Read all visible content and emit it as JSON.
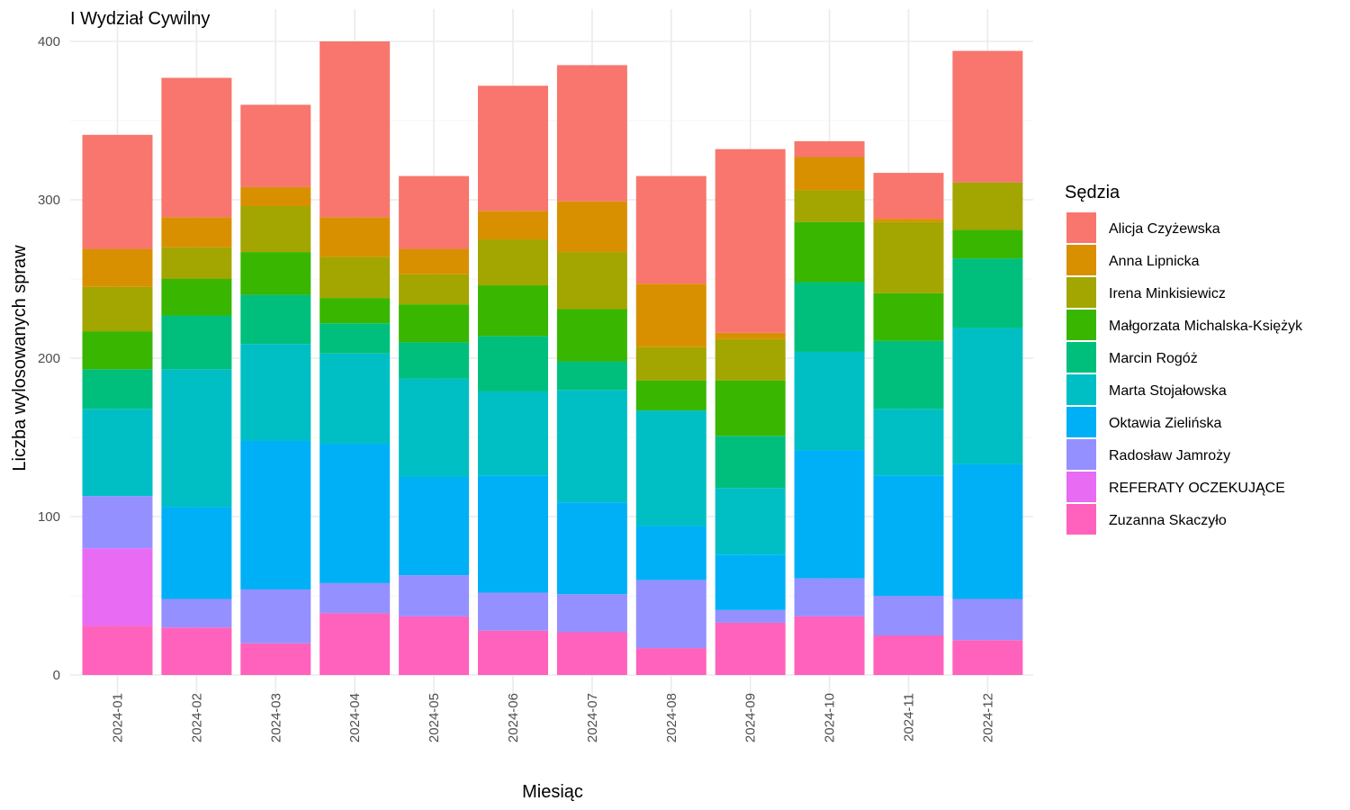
{
  "chart_data": {
    "type": "bar",
    "stacked": true,
    "title": "I Wydział Cywilny",
    "xlabel": "Miesiąc",
    "ylabel": "Liczba wylosowanych spraw",
    "ylim": [
      0,
      400
    ],
    "yticks": [
      0,
      100,
      200,
      300,
      400
    ],
    "grid": true,
    "legend_title": "Sędzia",
    "legend_position": "right",
    "categories": [
      "2024-01",
      "2024-02",
      "2024-03",
      "2024-04",
      "2024-05",
      "2024-06",
      "2024-07",
      "2024-08",
      "2024-09",
      "2024-10",
      "2024-11",
      "2024-12"
    ],
    "series": [
      {
        "name": "Alicja Czyżewska",
        "color": "#F8766D",
        "values": [
          72,
          88,
          52,
          111,
          46,
          79,
          86,
          68,
          116,
          10,
          29,
          83
        ]
      },
      {
        "name": "Anna Lipnicka",
        "color": "#D89000",
        "values": [
          24,
          19,
          12,
          25,
          16,
          18,
          32,
          40,
          4,
          21,
          2,
          0
        ]
      },
      {
        "name": "Irena Minkisiewicz",
        "color": "#A3A500",
        "values": [
          28,
          20,
          29,
          26,
          19,
          29,
          36,
          21,
          26,
          20,
          45,
          30
        ]
      },
      {
        "name": "Małgorzata Michalska-Księżyk",
        "color": "#39B600",
        "values": [
          24,
          23,
          27,
          16,
          24,
          32,
          33,
          19,
          35,
          38,
          30,
          18
        ]
      },
      {
        "name": "Marcin Rogóż",
        "color": "#00BF7D",
        "values": [
          25,
          34,
          31,
          19,
          23,
          35,
          18,
          0,
          33,
          44,
          43,
          44
        ]
      },
      {
        "name": "Marta Stojałowska",
        "color": "#00BFC4",
        "values": [
          55,
          87,
          61,
          57,
          62,
          53,
          71,
          73,
          42,
          62,
          42,
          86
        ]
      },
      {
        "name": "Oktawia Zielińska",
        "color": "#00B0F6",
        "values": [
          0,
          58,
          94,
          88,
          62,
          74,
          58,
          34,
          35,
          81,
          76,
          85
        ]
      },
      {
        "name": "Radosław Jamroży",
        "color": "#9590FF",
        "values": [
          33,
          18,
          34,
          19,
          26,
          24,
          24,
          43,
          8,
          24,
          25,
          26
        ]
      },
      {
        "name": "REFERATY OCZEKUJĄCE",
        "color": "#E76BF3",
        "values": [
          49,
          0,
          0,
          0,
          0,
          0,
          0,
          0,
          0,
          0,
          0,
          0
        ]
      },
      {
        "name": "Zuzanna Skaczyło",
        "color": "#FF62BC",
        "values": [
          31,
          30,
          20,
          39,
          37,
          28,
          27,
          17,
          33,
          37,
          25,
          22
        ]
      }
    ]
  }
}
